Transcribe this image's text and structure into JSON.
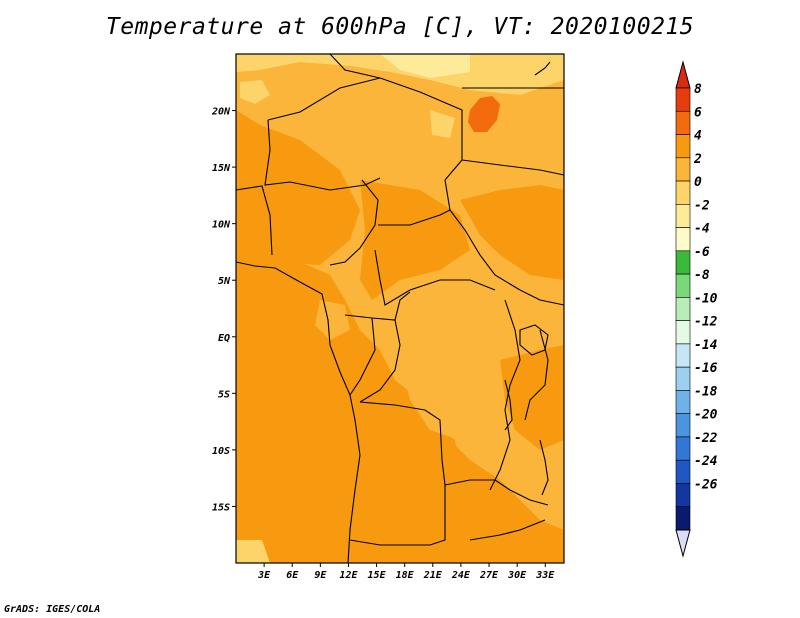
{
  "title": "Temperature at 600hPa [C], VT: 2020100215",
  "credit": "GrADS: IGES/COLA",
  "map": {
    "lon_range": [
      0,
      35
    ],
    "lat_range": [
      -20,
      25
    ],
    "lat_ticks": [
      {
        "value": 20,
        "label": "20N"
      },
      {
        "value": 15,
        "label": "15N"
      },
      {
        "value": 10,
        "label": "10N"
      },
      {
        "value": 5,
        "label": "5N"
      },
      {
        "value": 0,
        "label": "EQ"
      },
      {
        "value": -5,
        "label": "5S"
      },
      {
        "value": -10,
        "label": "10S"
      },
      {
        "value": -15,
        "label": "15S"
      }
    ],
    "lon_ticks": [
      {
        "value": 3,
        "label": "3E"
      },
      {
        "value": 6,
        "label": "6E"
      },
      {
        "value": 9,
        "label": "9E"
      },
      {
        "value": 12,
        "label": "12E"
      },
      {
        "value": 15,
        "label": "15E"
      },
      {
        "value": 18,
        "label": "18E"
      },
      {
        "value": 21,
        "label": "21E"
      },
      {
        "value": 24,
        "label": "24E"
      },
      {
        "value": 27,
        "label": "27E"
      },
      {
        "value": 30,
        "label": "30E"
      },
      {
        "value": 33,
        "label": "33E"
      }
    ]
  },
  "colorbar": {
    "levels": [
      "8",
      "6",
      "4",
      "2",
      "0",
      "-2",
      "-4",
      "-6",
      "-8",
      "-10",
      "-12",
      "-14",
      "-16",
      "-18",
      "-20",
      "-22",
      "-24",
      "-26"
    ],
    "colors": [
      "#e63c10",
      "#f26b0f",
      "#f89a10",
      "#fbb53a",
      "#fcd46a",
      "#fdeb9a",
      "#fffbc8",
      "#3cb83c",
      "#7ad87a",
      "#b8ecb8",
      "#e4fae4",
      "#c6e6f8",
      "#9ccff0",
      "#6fb2e8",
      "#4a95de",
      "#3377d6",
      "#1f58c4",
      "#1238a0",
      "#0a1a6e"
    ],
    "top_arrow_color": "#d92a12",
    "bottom_arrow_color": "#dcdcf5"
  }
}
